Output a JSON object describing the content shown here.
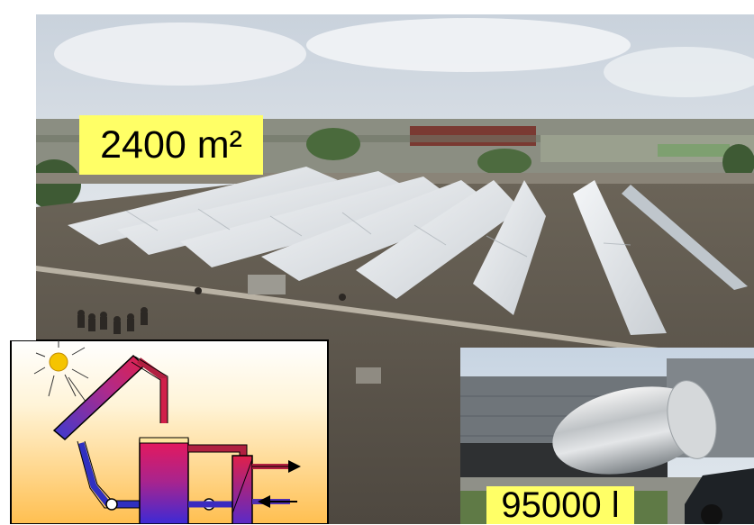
{
  "photo": {
    "description_icon": "rooftop-solar-collector-field-photo"
  },
  "labels": {
    "collector_area": "2400 m²",
    "storage_volume": "95000 l"
  },
  "colors": {
    "label_background": "#ffff66",
    "sky": "#dfe6ec",
    "roof": "#5e574d",
    "panel": "#e8ebee",
    "diagram_top": "#ffffff",
    "diagram_bottom": "#ffc860",
    "tank_hot": "#e0205a",
    "tank_cold": "#4a2ad0",
    "sun": "#f5c400"
  }
}
